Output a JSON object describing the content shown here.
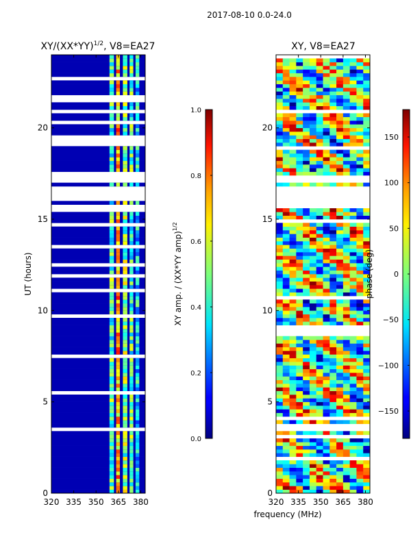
{
  "suptitle": "2017-08-10 0.0-24.0",
  "xlabel": "frequency (MHz)",
  "chart_data": [
    {
      "type": "heatmap",
      "title": "XY/(XX*YY)",
      "title_exp": "1/2",
      "title_suffix": ", V8=EA27",
      "xlabel": "",
      "ylabel": "UT (hours)",
      "xlim": [
        320,
        383
      ],
      "ylim": [
        0,
        24
      ],
      "xticks": [
        320,
        335,
        350,
        365,
        380
      ],
      "yticks": [
        0,
        5,
        10,
        15,
        20
      ],
      "colorbar": {
        "label": "XY amp. / (XX*YY amp)",
        "label_exp": "1/2",
        "range": [
          0.0,
          1.0
        ],
        "ticks": [
          "0.0",
          "0.2",
          "0.4",
          "0.6",
          "0.8",
          "1.0"
        ],
        "colormap": "jet"
      },
      "bands": [
        {
          "f": [
            359,
            362
          ],
          "value": 0.45
        },
        {
          "f": [
            363.5,
            366
          ],
          "value": 0.7
        },
        {
          "f": [
            368,
            371
          ],
          "value": 0.5
        },
        {
          "f": [
            372.5,
            375
          ],
          "value": 0.45
        },
        {
          "f": [
            376.5,
            379
          ],
          "value": 0.35
        }
      ],
      "background_value": 0.05,
      "blank_ut_ranges": [
        [
          17.1,
          17.6
        ],
        [
          16.0,
          16.7
        ],
        [
          19.0,
          19.6
        ],
        [
          15.3,
          15.7
        ],
        [
          21.5,
          21.7
        ],
        [
          11.8,
          11.9
        ]
      ]
    },
    {
      "type": "heatmap",
      "title": "XY, V8=EA27",
      "xlabel": "",
      "ylabel": "",
      "xlim": [
        320,
        383
      ],
      "ylim": [
        0,
        24
      ],
      "xticks": [
        320,
        335,
        350,
        365,
        380
      ],
      "yticks": [
        0,
        5,
        10,
        15,
        20
      ],
      "colorbar": {
        "label": "phase (deg)",
        "range": [
          -180,
          180
        ],
        "ticks": [
          "−150",
          "−100",
          "−50",
          "0",
          "50",
          "100",
          "150"
        ],
        "colormap": "jet"
      },
      "blank_ut_ranges": [
        [
          15.6,
          16.8
        ],
        [
          18.8,
          19.0
        ],
        [
          17.1,
          17.3
        ]
      ]
    }
  ]
}
